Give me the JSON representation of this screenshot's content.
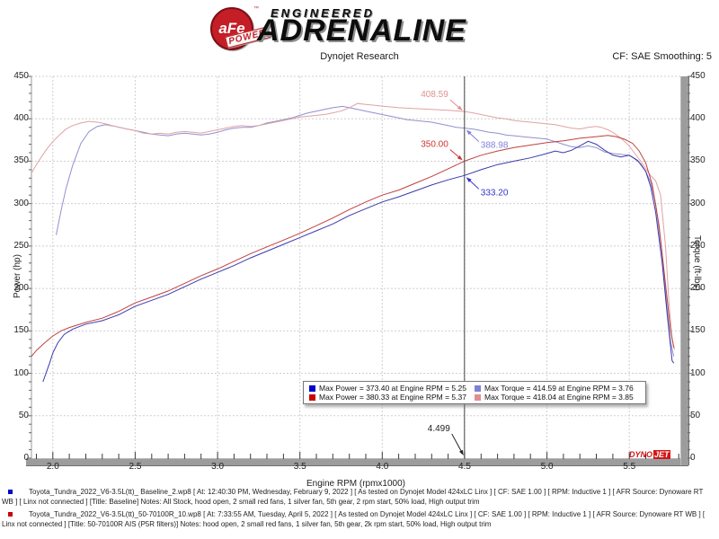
{
  "header": {
    "logo": {
      "circle_text": "aFe",
      "banner_text": "POWER",
      "tm": "™"
    },
    "brand_line1": "ENGINEERED",
    "brand_line2": "ADRENALINE",
    "subtitle": "Dynojet Research",
    "smoothing": "CF: SAE Smoothing: 5"
  },
  "chart_data": {
    "type": "line",
    "xlabel": "Engine RPM (rpmx1000)",
    "ylabel_left": "Power (hp)",
    "ylabel_right": "Torque (ft-lbs)",
    "xlim": [
      1.87,
      5.81
    ],
    "ylim": [
      0,
      450
    ],
    "x_ticks": [
      "2.0",
      "2.5",
      "3.0",
      "3.5",
      "4.0",
      "4.5",
      "5.0",
      "5.5"
    ],
    "y_ticks": [
      "450",
      "400",
      "350",
      "300",
      "250",
      "200",
      "150",
      "100",
      "50",
      "0"
    ],
    "grid": "dashed",
    "legend_position": "bottom-center-inside",
    "cursor": {
      "rpm": 4.499,
      "label": "4.499"
    },
    "series": [
      {
        "name": "baseline-torque",
        "color": "#9090d0",
        "axis": "torque",
        "points": [
          [
            2.02,
            263
          ],
          [
            2.05,
            292
          ],
          [
            2.08,
            318
          ],
          [
            2.12,
            345
          ],
          [
            2.17,
            371
          ],
          [
            2.22,
            385
          ],
          [
            2.27,
            391
          ],
          [
            2.32,
            393
          ],
          [
            2.38,
            391
          ],
          [
            2.45,
            388
          ],
          [
            2.5,
            386
          ],
          [
            2.55,
            384
          ],
          [
            2.6,
            382
          ],
          [
            2.65,
            381
          ],
          [
            2.7,
            380
          ],
          [
            2.75,
            382
          ],
          [
            2.8,
            383
          ],
          [
            2.85,
            382
          ],
          [
            2.9,
            381
          ],
          [
            2.95,
            382
          ],
          [
            3.0,
            384
          ],
          [
            3.05,
            387
          ],
          [
            3.1,
            389
          ],
          [
            3.15,
            390
          ],
          [
            3.2,
            390
          ],
          [
            3.25,
            392
          ],
          [
            3.3,
            395
          ],
          [
            3.35,
            397
          ],
          [
            3.4,
            399
          ],
          [
            3.45,
            401
          ],
          [
            3.5,
            404
          ],
          [
            3.55,
            407
          ],
          [
            3.6,
            409
          ],
          [
            3.65,
            411
          ],
          [
            3.7,
            413
          ],
          [
            3.76,
            414.6
          ],
          [
            3.8,
            413
          ],
          [
            3.85,
            411
          ],
          [
            3.9,
            409
          ],
          [
            3.95,
            407
          ],
          [
            4.0,
            405
          ],
          [
            4.05,
            403
          ],
          [
            4.1,
            401
          ],
          [
            4.15,
            399
          ],
          [
            4.2,
            398
          ],
          [
            4.3,
            396
          ],
          [
            4.35,
            394
          ],
          [
            4.4,
            392
          ],
          [
            4.45,
            390
          ],
          [
            4.499,
            389
          ],
          [
            4.55,
            388
          ],
          [
            4.6,
            386
          ],
          [
            4.65,
            384
          ],
          [
            4.7,
            383
          ],
          [
            4.75,
            381
          ],
          [
            4.8,
            380
          ],
          [
            4.85,
            379
          ],
          [
            4.9,
            378
          ],
          [
            4.95,
            377
          ],
          [
            5.0,
            376
          ],
          [
            5.05,
            373
          ],
          [
            5.1,
            370
          ],
          [
            5.15,
            367
          ],
          [
            5.2,
            366
          ],
          [
            5.25,
            368
          ],
          [
            5.3,
            366
          ],
          [
            5.35,
            361
          ],
          [
            5.4,
            359
          ],
          [
            5.45,
            358
          ],
          [
            5.5,
            357
          ],
          [
            5.53,
            353
          ],
          [
            5.57,
            347
          ],
          [
            5.6,
            338
          ],
          [
            5.63,
            325
          ],
          [
            5.66,
            300
          ],
          [
            5.7,
            240
          ],
          [
            5.73,
            175
          ],
          [
            5.75,
            138
          ],
          [
            5.77,
            120
          ]
        ]
      },
      {
        "name": "ais-torque",
        "color": "#dfa3a3",
        "axis": "torque",
        "points": [
          [
            1.87,
            336
          ],
          [
            1.9,
            346
          ],
          [
            1.93,
            355
          ],
          [
            1.97,
            366
          ],
          [
            2.0,
            373
          ],
          [
            2.04,
            381
          ],
          [
            2.08,
            388
          ],
          [
            2.12,
            392
          ],
          [
            2.17,
            395
          ],
          [
            2.22,
            397
          ],
          [
            2.27,
            396
          ],
          [
            2.32,
            394
          ],
          [
            2.4,
            390
          ],
          [
            2.45,
            388
          ],
          [
            2.5,
            386
          ],
          [
            2.55,
            383
          ],
          [
            2.6,
            382
          ],
          [
            2.65,
            383
          ],
          [
            2.7,
            382
          ],
          [
            2.75,
            384
          ],
          [
            2.8,
            385
          ],
          [
            2.85,
            384
          ],
          [
            2.9,
            383
          ],
          [
            2.95,
            385
          ],
          [
            3.0,
            387
          ],
          [
            3.05,
            389
          ],
          [
            3.1,
            391
          ],
          [
            3.15,
            392
          ],
          [
            3.2,
            391
          ],
          [
            3.25,
            392
          ],
          [
            3.3,
            394
          ],
          [
            3.35,
            396
          ],
          [
            3.4,
            398
          ],
          [
            3.45,
            400
          ],
          [
            3.5,
            402
          ],
          [
            3.55,
            403
          ],
          [
            3.6,
            404
          ],
          [
            3.65,
            405
          ],
          [
            3.7,
            407
          ],
          [
            3.75,
            409
          ],
          [
            3.8,
            413
          ],
          [
            3.85,
            418
          ],
          [
            3.9,
            417
          ],
          [
            3.95,
            416
          ],
          [
            4.0,
            415
          ],
          [
            4.05,
            414
          ],
          [
            4.1,
            413
          ],
          [
            4.2,
            412
          ],
          [
            4.3,
            411
          ],
          [
            4.4,
            410
          ],
          [
            4.499,
            408.6
          ],
          [
            4.55,
            407
          ],
          [
            4.6,
            405
          ],
          [
            4.65,
            403
          ],
          [
            4.7,
            401
          ],
          [
            4.75,
            400
          ],
          [
            4.8,
            398
          ],
          [
            4.85,
            397
          ],
          [
            4.9,
            396
          ],
          [
            4.95,
            395
          ],
          [
            5.0,
            394
          ],
          [
            5.05,
            393
          ],
          [
            5.1,
            391
          ],
          [
            5.15,
            389
          ],
          [
            5.2,
            388
          ],
          [
            5.25,
            390
          ],
          [
            5.3,
            391
          ],
          [
            5.33,
            390
          ],
          [
            5.37,
            387
          ],
          [
            5.4,
            384
          ],
          [
            5.45,
            377
          ],
          [
            5.5,
            368
          ],
          [
            5.53,
            360
          ],
          [
            5.57,
            350
          ],
          [
            5.6,
            341
          ],
          [
            5.63,
            333
          ],
          [
            5.66,
            327
          ],
          [
            5.69,
            310
          ],
          [
            5.72,
            250
          ],
          [
            5.74,
            185
          ],
          [
            5.76,
            140
          ],
          [
            5.775,
            128
          ]
        ]
      },
      {
        "name": "baseline-power",
        "color": "#3a3aad",
        "axis": "power",
        "points": [
          [
            1.94,
            90
          ],
          [
            1.96,
            101
          ],
          [
            1.98,
            112
          ],
          [
            2.0,
            124
          ],
          [
            2.03,
            136
          ],
          [
            2.07,
            146
          ],
          [
            2.12,
            152
          ],
          [
            2.2,
            158
          ],
          [
            2.3,
            162
          ],
          [
            2.4,
            169
          ],
          [
            2.5,
            179
          ],
          [
            2.6,
            186
          ],
          [
            2.7,
            193
          ],
          [
            2.8,
            202
          ],
          [
            2.9,
            211
          ],
          [
            3.0,
            219
          ],
          [
            3.1,
            227
          ],
          [
            3.2,
            236
          ],
          [
            3.3,
            244
          ],
          [
            3.4,
            252
          ],
          [
            3.5,
            260
          ],
          [
            3.6,
            268
          ],
          [
            3.7,
            276
          ],
          [
            3.8,
            286
          ],
          [
            3.9,
            294
          ],
          [
            4.0,
            302
          ],
          [
            4.1,
            308
          ],
          [
            4.2,
            315
          ],
          [
            4.3,
            322
          ],
          [
            4.4,
            328
          ],
          [
            4.499,
            333.2
          ],
          [
            4.6,
            340
          ],
          [
            4.7,
            346
          ],
          [
            4.8,
            350
          ],
          [
            4.9,
            354
          ],
          [
            5.0,
            359
          ],
          [
            5.05,
            362
          ],
          [
            5.1,
            360
          ],
          [
            5.15,
            363
          ],
          [
            5.2,
            368
          ],
          [
            5.25,
            373.4
          ],
          [
            5.3,
            370
          ],
          [
            5.35,
            363
          ],
          [
            5.4,
            357
          ],
          [
            5.45,
            355
          ],
          [
            5.5,
            357
          ],
          [
            5.55,
            351
          ],
          [
            5.6,
            338
          ],
          [
            5.63,
            320
          ],
          [
            5.66,
            290
          ],
          [
            5.7,
            230
          ],
          [
            5.73,
            170
          ],
          [
            5.75,
            133
          ],
          [
            5.76,
            115
          ],
          [
            5.77,
            112
          ]
        ]
      },
      {
        "name": "ais-power",
        "color": "#c04040",
        "axis": "power",
        "points": [
          [
            1.87,
            120
          ],
          [
            1.9,
            127
          ],
          [
            1.95,
            136
          ],
          [
            2.0,
            144
          ],
          [
            2.05,
            150
          ],
          [
            2.1,
            154
          ],
          [
            2.2,
            160
          ],
          [
            2.3,
            165
          ],
          [
            2.4,
            173
          ],
          [
            2.5,
            183
          ],
          [
            2.6,
            190
          ],
          [
            2.7,
            197
          ],
          [
            2.8,
            206
          ],
          [
            2.9,
            215
          ],
          [
            3.0,
            223
          ],
          [
            3.1,
            232
          ],
          [
            3.2,
            241
          ],
          [
            3.3,
            249
          ],
          [
            3.4,
            257
          ],
          [
            3.5,
            265
          ],
          [
            3.6,
            274
          ],
          [
            3.7,
            283
          ],
          [
            3.8,
            293
          ],
          [
            3.9,
            302
          ],
          [
            4.0,
            310
          ],
          [
            4.1,
            316
          ],
          [
            4.2,
            324
          ],
          [
            4.3,
            332
          ],
          [
            4.4,
            341
          ],
          [
            4.499,
            350
          ],
          [
            4.6,
            357
          ],
          [
            4.7,
            362
          ],
          [
            4.8,
            366
          ],
          [
            4.9,
            369
          ],
          [
            5.0,
            372
          ],
          [
            5.1,
            374
          ],
          [
            5.2,
            377
          ],
          [
            5.3,
            379
          ],
          [
            5.37,
            380.3
          ],
          [
            5.42,
            379
          ],
          [
            5.47,
            376
          ],
          [
            5.52,
            371
          ],
          [
            5.56,
            362
          ],
          [
            5.6,
            348
          ],
          [
            5.64,
            322
          ],
          [
            5.68,
            275
          ],
          [
            5.72,
            205
          ],
          [
            5.75,
            152
          ],
          [
            5.77,
            130
          ]
        ]
      }
    ],
    "annotations": [
      {
        "label": "408.59",
        "color": "#e08f8f",
        "rpm": 4.499,
        "value": 408.59,
        "side": "left"
      },
      {
        "label": "388.98",
        "color": "#8080d8",
        "rpm": 4.499,
        "value": 388.98,
        "side": "right"
      },
      {
        "label": "350.00",
        "color": "#cc3333",
        "rpm": 4.499,
        "value": 350.0,
        "side": "left"
      },
      {
        "label": "333.20",
        "color": "#3333cc",
        "rpm": 4.499,
        "value": 333.2,
        "side": "right"
      }
    ],
    "legend": [
      {
        "marker": "#0000cc",
        "text": "Max Power = 373.40 at Engine RPM = 5.25"
      },
      {
        "marker": "#8080d8",
        "text": "Max Torque = 414.59 at Engine RPM = 3.76"
      },
      {
        "marker": "#cc0000",
        "text": "Max Power = 380.33 at Engine RPM = 5.37"
      },
      {
        "marker": "#e08f8f",
        "text": "Max Torque = 418.04 at Engine RPM = 3.85"
      }
    ],
    "watermark": {
      "part1": "DYNO",
      "part2": "JET"
    }
  },
  "footer": {
    "entries": [
      {
        "bullet_color": "#0000cc",
        "text": "Toyota_Tundra_2022_V6-3.5L(tt)_ Baseline_2.wp8 [ At: 12:40:30 PM, Wednesday, February 9, 2022 ] [ As tested on Dynojet Model 424xLC Linx ] [ CF: SAE 1.00 ] [ RPM: Inductive 1 ] [ AFR Source: Dynoware RT WB ] [ Linx not connected ] [Title: Baseline]  Notes: All Stock, hood open, 2 small red fans, 1 silver fan, 5th gear, 2 rpm start, 50% load, High output trim"
      },
      {
        "bullet_color": "#cc0000",
        "text": "Toyota_Tundra_2022_V6-3.5L(tt)_50-70100R_10.wp8 [ At: 7:33:55 AM, Tuesday, April 5, 2022 ] [ As tested on Dynojet Model 424xLC Linx ] [ CF: SAE 1.00 ] [ RPM: Inductive 1 ] [ AFR Source: Dynoware RT WB ] [ Linx not connected ] [Title: 50-70100R AIS (P5R filters)]  Notes: hood open, 2 small red fans, 1 silver fan, 5th gear, 2k rpm start, 50% load, High output trim"
      }
    ]
  }
}
